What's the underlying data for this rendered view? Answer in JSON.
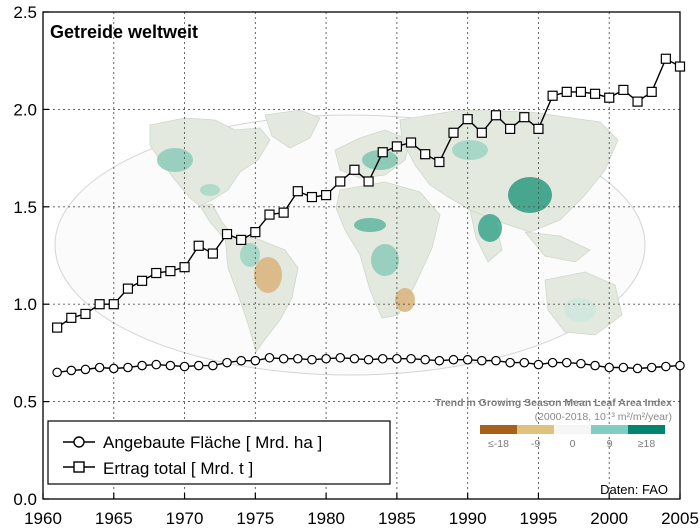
{
  "chart_data": {
    "type": "line",
    "title": "Getreide weltweit",
    "xlim": [
      1960,
      2005
    ],
    "ylim": [
      0.0,
      2.5
    ],
    "x_ticks": [
      "1960",
      "1965",
      "1970",
      "1975",
      "1980",
      "1985",
      "1990",
      "1995",
      "2000",
      "2005"
    ],
    "y_ticks": [
      "0.0",
      "0.5",
      "1.0",
      "1.5",
      "2.0",
      "2.5"
    ],
    "grid": true,
    "legend_position": "bottom-left",
    "series": [
      {
        "name": "Angebaute Fläche [ Mrd. ha ]",
        "marker": "circle",
        "x": [
          1961,
          1962,
          1963,
          1964,
          1965,
          1966,
          1967,
          1968,
          1969,
          1970,
          1971,
          1972,
          1973,
          1974,
          1975,
          1976,
          1977,
          1978,
          1979,
          1980,
          1981,
          1982,
          1983,
          1984,
          1985,
          1986,
          1987,
          1988,
          1989,
          1990,
          1991,
          1992,
          1993,
          1994,
          1995,
          1996,
          1997,
          1998,
          1999,
          2000,
          2001,
          2002,
          2003,
          2004,
          2005
        ],
        "values": [
          0.65,
          0.66,
          0.665,
          0.675,
          0.67,
          0.675,
          0.685,
          0.69,
          0.685,
          0.68,
          0.685,
          0.685,
          0.7,
          0.71,
          0.71,
          0.725,
          0.72,
          0.72,
          0.715,
          0.72,
          0.725,
          0.72,
          0.715,
          0.72,
          0.72,
          0.72,
          0.715,
          0.71,
          0.715,
          0.715,
          0.71,
          0.71,
          0.7,
          0.7,
          0.69,
          0.7,
          0.7,
          0.695,
          0.685,
          0.675,
          0.675,
          0.67,
          0.675,
          0.68,
          0.685
        ]
      },
      {
        "name": "Ertrag total [ Mrd. t ]",
        "marker": "square",
        "x": [
          1961,
          1962,
          1963,
          1964,
          1965,
          1966,
          1967,
          1968,
          1969,
          1970,
          1971,
          1972,
          1973,
          1974,
          1975,
          1976,
          1977,
          1978,
          1979,
          1980,
          1981,
          1982,
          1983,
          1984,
          1985,
          1986,
          1987,
          1988,
          1989,
          1990,
          1991,
          1992,
          1993,
          1994,
          1995,
          1996,
          1997,
          1998,
          1999,
          2000,
          2001,
          2002,
          2003,
          2004,
          2005
        ],
        "values": [
          0.88,
          0.93,
          0.95,
          1.0,
          1.0,
          1.08,
          1.12,
          1.16,
          1.17,
          1.19,
          1.3,
          1.26,
          1.36,
          1.33,
          1.37,
          1.46,
          1.47,
          1.58,
          1.55,
          1.56,
          1.63,
          1.69,
          1.63,
          1.78,
          1.81,
          1.83,
          1.77,
          1.73,
          1.88,
          1.95,
          1.88,
          1.97,
          1.9,
          1.96,
          1.9,
          2.07,
          2.09,
          2.09,
          2.08,
          2.06,
          2.1,
          2.04,
          2.09,
          2.26,
          2.22
        ]
      }
    ],
    "source": "Daten: FAO",
    "inset": {
      "title": "Trend in Growing Season Mean Leaf Area Index",
      "subtitle": "(2000-2018, 10⁻³ m²/m²/year)",
      "scale_labels": [
        "≤-18",
        "-9",
        "0",
        "9",
        "≥18"
      ],
      "scale_colors": [
        "#a6611a",
        "#dfc27d",
        "#f5f5f5",
        "#80cdc1",
        "#018571"
      ]
    }
  }
}
